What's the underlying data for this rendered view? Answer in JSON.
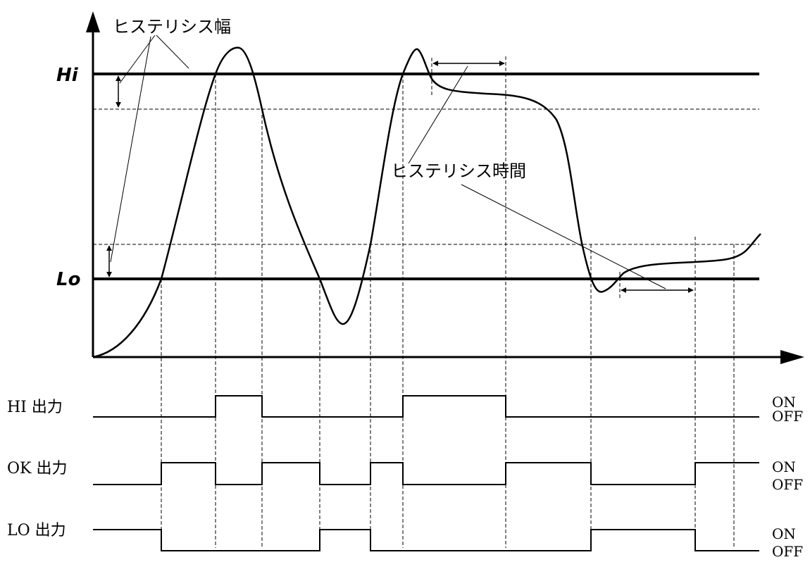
{
  "levels": {
    "hi": "Hi",
    "lo": "Lo"
  },
  "annotations": {
    "hysteresis_width": "ヒステリシス幅",
    "hysteresis_time": "ヒステリシス時間"
  },
  "outputs": [
    {
      "label": "HI 出力",
      "on": "ON",
      "off": "OFF"
    },
    {
      "label": "OK 出力",
      "on": "ON",
      "off": "OFF"
    },
    {
      "label": "LO 出力",
      "on": "ON",
      "off": "OFF"
    }
  ],
  "colors": {
    "ink": "#000000",
    "background": "#ffffff"
  }
}
